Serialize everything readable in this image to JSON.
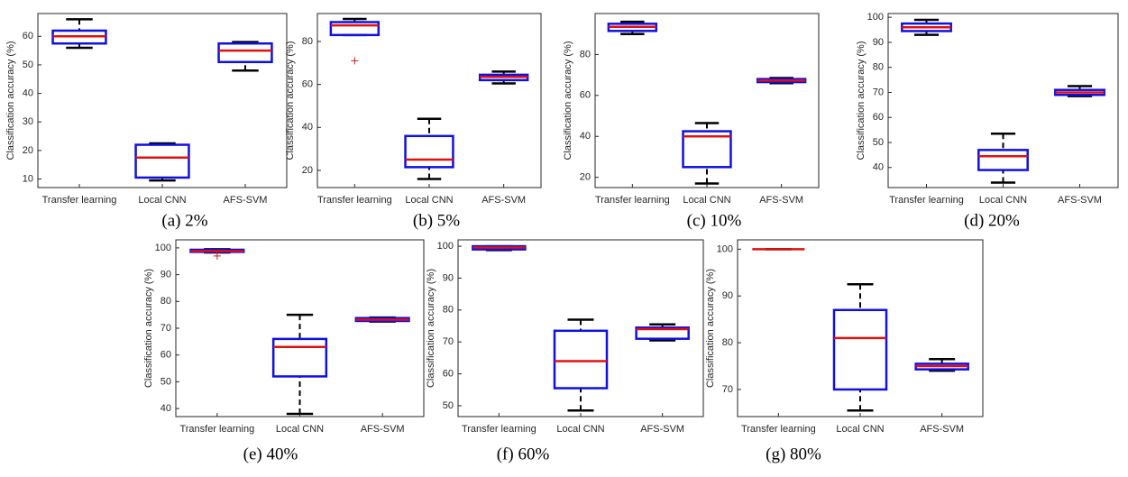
{
  "chart_data": [
    {
      "type": "box",
      "caption": "(a) 2%",
      "ylabel": "Classification accuracy (%)",
      "categories": [
        "Transfer learning",
        "Local CNN",
        "AFS-SVM"
      ],
      "ylim": [
        7,
        68
      ],
      "yticks": [
        10,
        20,
        30,
        40,
        50,
        60
      ],
      "box_color": "#1010e0",
      "median_color": "#e01010",
      "whisker_color": "#000000",
      "outlier_color": "#c02020",
      "boxes": [
        {
          "whisker_low": 56,
          "q1": 57.5,
          "median": 60,
          "q3": 62,
          "whisker_high": 66
        },
        {
          "whisker_low": 9.5,
          "q1": 10.5,
          "median": 17.5,
          "q3": 22,
          "whisker_high": 22.5
        },
        {
          "whisker_low": 48,
          "q1": 51,
          "median": 55,
          "q3": 57.5,
          "whisker_high": 58
        }
      ]
    },
    {
      "type": "box",
      "caption": "(b) 5%",
      "ylabel": "Classification accuracy (%)",
      "categories": [
        "Transfer learning",
        "Local CNN",
        "AFS-SVM"
      ],
      "ylim": [
        12,
        93
      ],
      "yticks": [
        20,
        40,
        60,
        80
      ],
      "box_color": "#1010e0",
      "median_color": "#e01010",
      "whisker_color": "#000000",
      "outlier_color": "#c02020",
      "boxes": [
        {
          "whisker_low": 83,
          "q1": 83,
          "median": 87.5,
          "q3": 89,
          "whisker_high": 90.5,
          "outliers": [
            71
          ]
        },
        {
          "whisker_low": 16,
          "q1": 21.5,
          "median": 25,
          "q3": 36,
          "whisker_high": 44
        },
        {
          "whisker_low": 60.5,
          "q1": 62,
          "median": 63.5,
          "q3": 64.5,
          "whisker_high": 66
        }
      ]
    },
    {
      "type": "box",
      "caption": "(c) 10%",
      "ylabel": "Classification accuracy (%)",
      "categories": [
        "Transfer learning",
        "Local CNN",
        "AFS-SVM"
      ],
      "ylim": [
        15,
        100
      ],
      "yticks": [
        20,
        40,
        60,
        80
      ],
      "box_color": "#1010e0",
      "median_color": "#e01010",
      "whisker_color": "#000000",
      "outlier_color": "#c02020",
      "boxes": [
        {
          "whisker_low": 90,
          "q1": 91.5,
          "median": 93.5,
          "q3": 95,
          "whisker_high": 96
        },
        {
          "whisker_low": 17,
          "q1": 25,
          "median": 40,
          "q3": 42.5,
          "whisker_high": 46.5
        },
        {
          "whisker_low": 66,
          "q1": 66.5,
          "median": 67.3,
          "q3": 68,
          "whisker_high": 68.5
        }
      ]
    },
    {
      "type": "box",
      "caption": "(d) 20%",
      "ylabel": "Classification accuracy (%)",
      "categories": [
        "Transfer learning",
        "Local CNN",
        "AFS-SVM"
      ],
      "ylim": [
        32,
        101.5
      ],
      "yticks": [
        40,
        50,
        60,
        70,
        80,
        90,
        100
      ],
      "box_color": "#1010e0",
      "median_color": "#e01010",
      "whisker_color": "#000000",
      "outlier_color": "#c02020",
      "boxes": [
        {
          "whisker_low": 93,
          "q1": 94.5,
          "median": 96,
          "q3": 97.5,
          "whisker_high": 99
        },
        {
          "whisker_low": 34,
          "q1": 39,
          "median": 44.5,
          "q3": 47,
          "whisker_high": 53.5
        },
        {
          "whisker_low": 68.5,
          "q1": 69,
          "median": 70,
          "q3": 71,
          "whisker_high": 72.5
        }
      ]
    },
    {
      "type": "box",
      "caption": "(e) 40%",
      "ylabel": "Classification accuracy (%)",
      "categories": [
        "Transfer learning",
        "Local CNN",
        "AFS-SVM"
      ],
      "ylim": [
        37,
        103
      ],
      "yticks": [
        40,
        50,
        60,
        70,
        80,
        90,
        100
      ],
      "box_color": "#1010e0",
      "median_color": "#e01010",
      "whisker_color": "#000000",
      "outlier_color": "#c02020",
      "boxes": [
        {
          "whisker_low": 98.3,
          "q1": 98.5,
          "median": 98.8,
          "q3": 99.3,
          "whisker_high": 99.5,
          "outliers": [
            97
          ]
        },
        {
          "whisker_low": 38,
          "q1": 52,
          "median": 63,
          "q3": 66,
          "whisker_high": 75
        },
        {
          "whisker_low": 72.5,
          "q1": 72.7,
          "median": 73.2,
          "q3": 73.8,
          "whisker_high": 74
        }
      ]
    },
    {
      "type": "box",
      "caption": "(f) 60%",
      "ylabel": "Classification accuracy (%)",
      "categories": [
        "Transfer learning",
        "Local CNN",
        "AFS-SVM"
      ],
      "ylim": [
        46.6,
        102
      ],
      "yticks": [
        50,
        60,
        70,
        80,
        90,
        100
      ],
      "box_color": "#1010e0",
      "median_color": "#e01010",
      "whisker_color": "#000000",
      "outlier_color": "#c02020",
      "boxes": [
        {
          "whisker_low": 98.8,
          "q1": 99,
          "median": 99.6,
          "q3": 100,
          "whisker_high": 100
        },
        {
          "whisker_low": 48.5,
          "q1": 55.5,
          "median": 64,
          "q3": 73.5,
          "whisker_high": 77
        },
        {
          "whisker_low": 70.5,
          "q1": 71,
          "median": 74,
          "q3": 74.5,
          "whisker_high": 75.5
        }
      ]
    },
    {
      "type": "box",
      "caption": "(g) 80%",
      "ylabel": "Classification accuracy (%)",
      "categories": [
        "Transfer learning",
        "Local CNN",
        "AFS-SVM"
      ],
      "ylim": [
        64.2,
        102
      ],
      "yticks": [
        70,
        80,
        90,
        100
      ],
      "box_color": "#1010e0",
      "median_color": "#e01010",
      "whisker_color": "#000000",
      "outlier_color": "#c02020",
      "boxes": [
        {
          "whisker_low": 100,
          "q1": 100,
          "median": 100,
          "q3": 100,
          "whisker_high": 100
        },
        {
          "whisker_low": 65.5,
          "q1": 70,
          "median": 81,
          "q3": 87,
          "whisker_high": 92.5
        },
        {
          "whisker_low": 74,
          "q1": 74.3,
          "median": 75,
          "q3": 75.5,
          "whisker_high": 76.5
        }
      ]
    }
  ]
}
